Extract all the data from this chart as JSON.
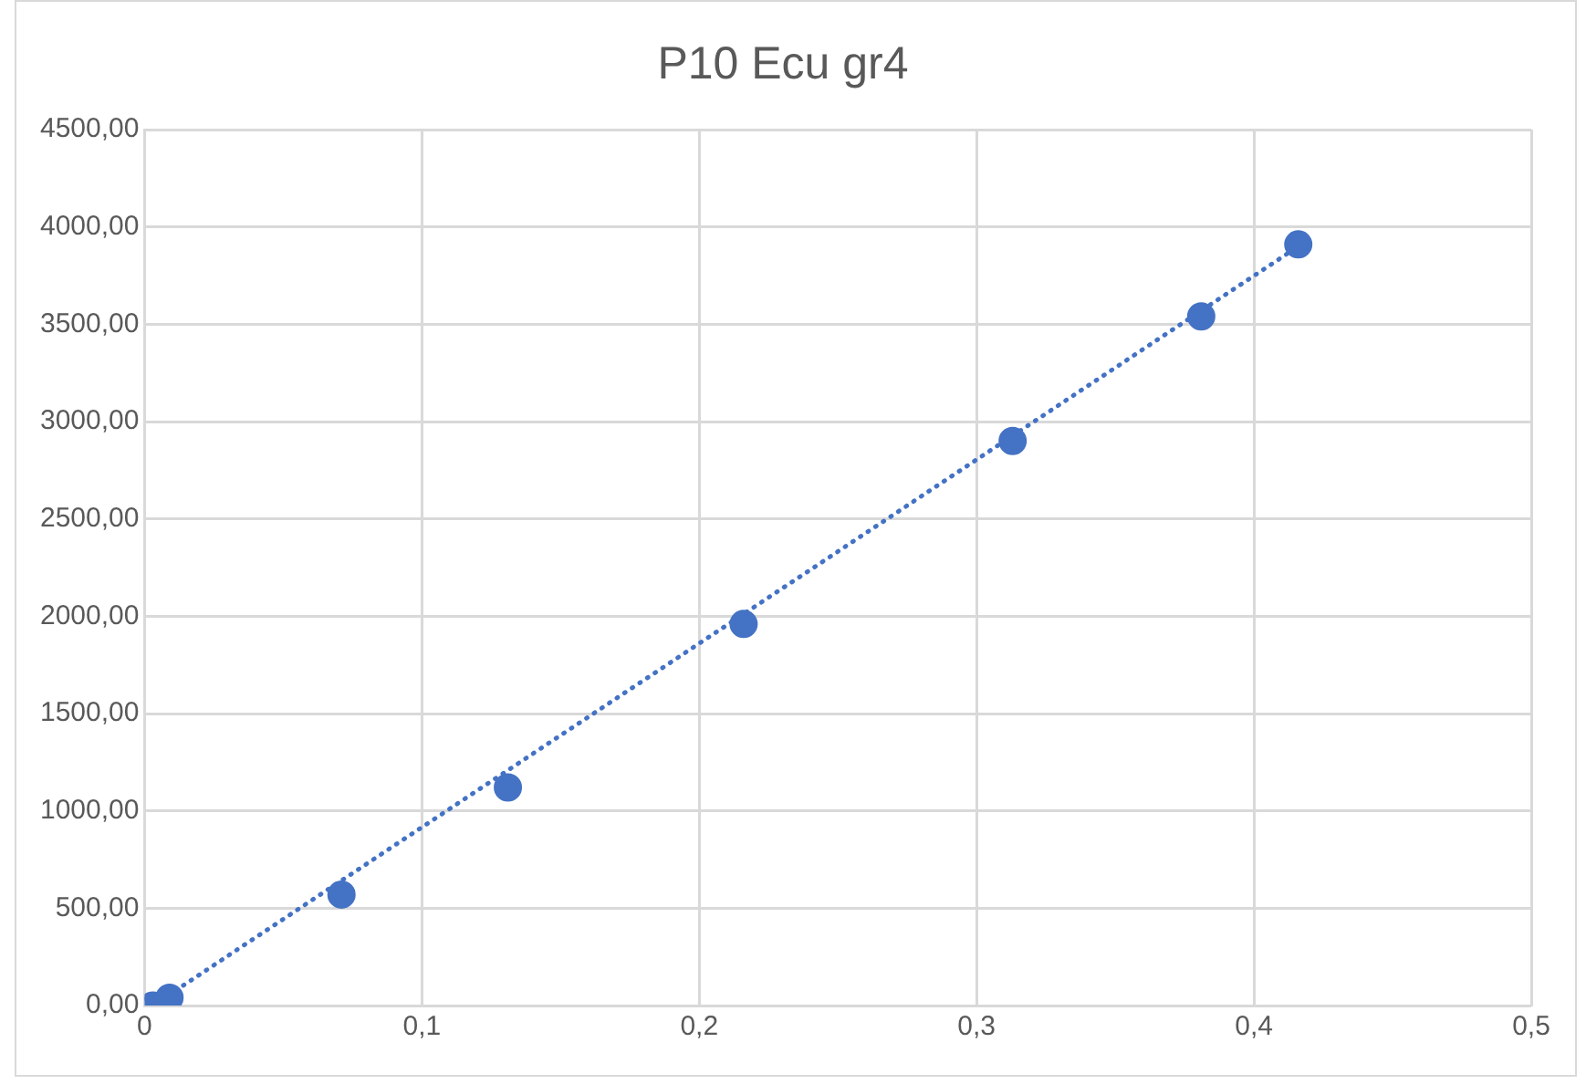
{
  "chart_data": {
    "type": "scatter",
    "title": "P10 Ecu gr4",
    "series": [
      {
        "type": "scatter",
        "color": "#4472c4",
        "marker": "circle",
        "x": [
          0.003,
          0.009,
          0.071,
          0.131,
          0.216,
          0.313,
          0.381,
          0.416
        ],
        "values": [
          0,
          40,
          570,
          1120,
          1960,
          2900,
          3540,
          3910
        ]
      },
      {
        "type": "line",
        "color": "#4472c4",
        "marker": "none",
        "line_style": "dotted",
        "x": [
          0.003,
          0.416
        ],
        "values": [
          0,
          3900
        ]
      }
    ],
    "xlim": [
      0,
      0.5
    ],
    "xticks": [
      0,
      {
        "value": 0.1,
        "label": "0,1"
      },
      {
        "value": 0.2,
        "label": "0,2"
      },
      {
        "value": 0.3,
        "label": "0,3"
      },
      {
        "value": 0.4,
        "label": "0,4"
      },
      {
        "value": 0.5,
        "label": "0,5"
      }
    ],
    "ylim": [
      0,
      4500
    ],
    "yticks": [
      {
        "value": 0,
        "label": "0,00"
      },
      {
        "value": 500,
        "label": "500,00"
      },
      {
        "value": 1000,
        "label": "1000,00"
      },
      {
        "value": 1500,
        "label": "1500,00"
      },
      {
        "value": 2000,
        "label": "2000,00"
      },
      {
        "value": 2500,
        "label": "2500,00"
      },
      {
        "value": 3000,
        "label": "3000,00"
      },
      {
        "value": 3500,
        "label": "3500,00"
      },
      {
        "value": 4000,
        "label": "4000,00"
      },
      {
        "value": 4500,
        "label": "4500,00"
      }
    ],
    "grid": true,
    "legend": false
  }
}
